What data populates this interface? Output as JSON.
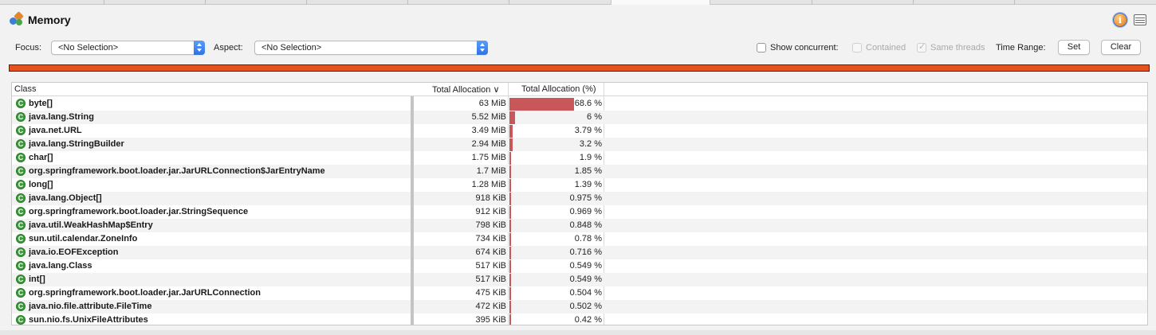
{
  "title": "Memory",
  "icons": {
    "title": "memory-view-icon",
    "info": "info-icon",
    "table": "table-icon"
  },
  "filters": {
    "focus_label": "Focus:",
    "focus_value": "<No Selection>",
    "aspect_label": "Aspect:",
    "aspect_value": "<No Selection>",
    "show_concurrent_label": "Show concurrent:",
    "contained_label": "Contained",
    "same_threads_label": "Same threads",
    "time_range_label": "Time Range:",
    "set_label": "Set",
    "clear_label": "Clear"
  },
  "colors": {
    "timeline": "#e4521d",
    "bar": "#c9575a",
    "class_icon": "#3b9b3b"
  },
  "table": {
    "columns": [
      "Class",
      "Total Allocation",
      "Total Allocation (%)"
    ],
    "sort_indicator": "∨",
    "rows": [
      {
        "cls": "byte[]",
        "alloc": "63 MiB",
        "pct": "68.6 %",
        "pct_value": 68.6
      },
      {
        "cls": "java.lang.String",
        "alloc": "5.52 MiB",
        "pct": "6 %",
        "pct_value": 6
      },
      {
        "cls": "java.net.URL",
        "alloc": "3.49 MiB",
        "pct": "3.79 %",
        "pct_value": 3.79
      },
      {
        "cls": "java.lang.StringBuilder",
        "alloc": "2.94 MiB",
        "pct": "3.2 %",
        "pct_value": 3.2
      },
      {
        "cls": "char[]",
        "alloc": "1.75 MiB",
        "pct": "1.9 %",
        "pct_value": 1.9
      },
      {
        "cls": "org.springframework.boot.loader.jar.JarURLConnection$JarEntryName",
        "alloc": "1.7 MiB",
        "pct": "1.85 %",
        "pct_value": 1.85
      },
      {
        "cls": "long[]",
        "alloc": "1.28 MiB",
        "pct": "1.39 %",
        "pct_value": 1.39
      },
      {
        "cls": "java.lang.Object[]",
        "alloc": "918 KiB",
        "pct": "0.975 %",
        "pct_value": 0.975
      },
      {
        "cls": "org.springframework.boot.loader.jar.StringSequence",
        "alloc": "912 KiB",
        "pct": "0.969 %",
        "pct_value": 0.969
      },
      {
        "cls": "java.util.WeakHashMap$Entry",
        "alloc": "798 KiB",
        "pct": "0.848 %",
        "pct_value": 0.848
      },
      {
        "cls": "sun.util.calendar.ZoneInfo",
        "alloc": "734 KiB",
        "pct": "0.78 %",
        "pct_value": 0.78
      },
      {
        "cls": "java.io.EOFException",
        "alloc": "674 KiB",
        "pct": "0.716 %",
        "pct_value": 0.716
      },
      {
        "cls": "java.lang.Class",
        "alloc": "517 KiB",
        "pct": "0.549 %",
        "pct_value": 0.549
      },
      {
        "cls": "int[]",
        "alloc": "517 KiB",
        "pct": "0.549 %",
        "pct_value": 0.549
      },
      {
        "cls": "org.springframework.boot.loader.jar.JarURLConnection",
        "alloc": "475 KiB",
        "pct": "0.504 %",
        "pct_value": 0.504
      },
      {
        "cls": "java.nio.file.attribute.FileTime",
        "alloc": "472 KiB",
        "pct": "0.502 %",
        "pct_value": 0.502
      },
      {
        "cls": "sun.nio.fs.UnixFileAttributes",
        "alloc": "395 KiB",
        "pct": "0.42 %",
        "pct_value": 0.42
      }
    ]
  }
}
